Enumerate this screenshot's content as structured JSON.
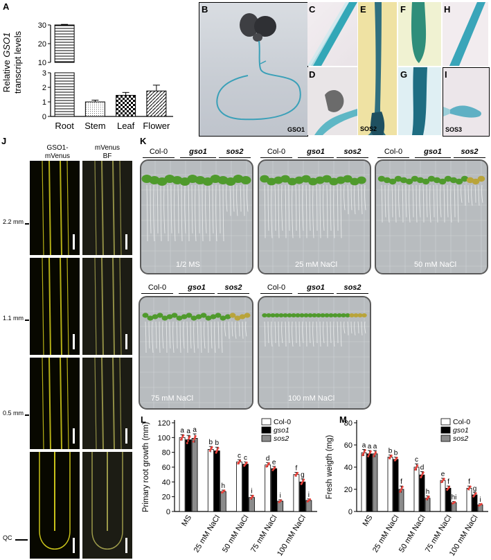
{
  "panels": {
    "A": "A",
    "B": "B",
    "C": "C",
    "D": "D",
    "E": "E",
    "F": "F",
    "G": "G",
    "H": "H",
    "I": "I",
    "J": "J",
    "K": "K",
    "L": "L",
    "M": "M"
  },
  "panel_b_tags": {
    "gso1": "GSO1",
    "sos2": "SOS2",
    "sos3": "SOS3"
  },
  "panel_j": {
    "col1_line1": "GSO1-",
    "col1_line2": "mVenus",
    "col2_line1": "mVenus",
    "col2_line2": "BF",
    "positions": [
      "2.2 mm",
      "1.1 mm",
      "0.5 mm",
      "QC"
    ]
  },
  "panel_k": {
    "groups": {
      "col0": "Col-0",
      "gso1": "gso1",
      "sos2": "sos2"
    },
    "plates": [
      "1/2 MS",
      "25 mM NaCl",
      "50 mM NaCl",
      "75 mM NaCl",
      "100 mM NaCl"
    ]
  },
  "chart_data": [
    {
      "panel": "A",
      "type": "bar",
      "ylabel_line1": "Relative",
      "ylabel_gene": "GSO1",
      "ylabel_line2": "transcript levels",
      "categories": [
        "Root",
        "Stem",
        "Leaf",
        "Flower"
      ],
      "values": [
        30,
        1.0,
        1.45,
        1.75
      ],
      "errors": [
        0.3,
        0.12,
        0.2,
        0.4
      ],
      "y_axis_break": {
        "lower": [
          0,
          3
        ],
        "upper": [
          10,
          30
        ]
      },
      "yticks_lower": [
        "0",
        "1",
        "2",
        "3"
      ],
      "yticks_upper": [
        "10",
        "20",
        "30"
      ],
      "patterns": [
        "horizontal-lines",
        "dots",
        "checker",
        "diagonal-lines"
      ]
    },
    {
      "panel": "L",
      "type": "bar",
      "ylabel": "Primary root growth (mm)",
      "ylim": [
        0,
        120
      ],
      "yticks": [
        "0",
        "20",
        "40",
        "60",
        "80",
        "100",
        "120"
      ],
      "categories": [
        "MS",
        "25 mM NaCl",
        "50 mM NaCl",
        "75 mM NaCl",
        "100 mM NaCl"
      ],
      "series": [
        {
          "name": "Col-0",
          "color": "#ffffff",
          "values": [
            100,
            84,
            67,
            63,
            50
          ],
          "errors": [
            4,
            4,
            3,
            3,
            3
          ],
          "letters": [
            "a",
            "b",
            "c",
            "d",
            "f"
          ]
        },
        {
          "name": "gso1",
          "color": "#000000",
          "values": [
            97,
            82,
            64,
            58,
            40
          ],
          "errors": [
            6,
            5,
            3,
            3,
            4
          ],
          "letters": [
            "a",
            "b",
            "c",
            "e",
            "g"
          ]
        },
        {
          "name": "sos2",
          "color": "#8c8c8c",
          "values": [
            99,
            27,
            19,
            14,
            15
          ],
          "errors": [
            6,
            2,
            3,
            2,
            2
          ],
          "letters": [
            "a",
            "h",
            "i",
            "i",
            "i"
          ]
        }
      ],
      "legend": "top-right",
      "scatter_color": "#e8413a"
    },
    {
      "panel": "M",
      "type": "bar",
      "ylabel": "Fresh weigth (mg)",
      "ylim": [
        0,
        80
      ],
      "yticks": [
        "0",
        "20",
        "40",
        "60",
        "80"
      ],
      "categories": [
        "MS",
        "25 mM NaCl",
        "50 mM NaCl",
        "75 mM NaCl",
        "100 mM NaCl"
      ],
      "series": [
        {
          "name": "Col-0",
          "color": "#ffffff",
          "values": [
            53,
            49,
            40,
            28,
            21
          ],
          "errors": [
            3,
            2,
            3,
            2,
            2
          ],
          "letters": [
            "a",
            "b",
            "c",
            "e",
            "f"
          ]
        },
        {
          "name": "gso1",
          "color": "#000000",
          "values": [
            52,
            47,
            33,
            21,
            15
          ],
          "errors": [
            3,
            2,
            3,
            2,
            2
          ],
          "letters": [
            "a",
            "b",
            "d",
            "f",
            "g"
          ]
        },
        {
          "name": "sos2",
          "color": "#8c8c8c",
          "values": [
            52,
            20,
            12,
            8,
            6
          ],
          "errors": [
            3,
            3,
            2,
            1,
            1
          ],
          "letters": [
            "a",
            "f",
            "h",
            "hi",
            "i"
          ]
        }
      ],
      "legend": "top-right",
      "scatter_color": "#e8413a"
    }
  ]
}
